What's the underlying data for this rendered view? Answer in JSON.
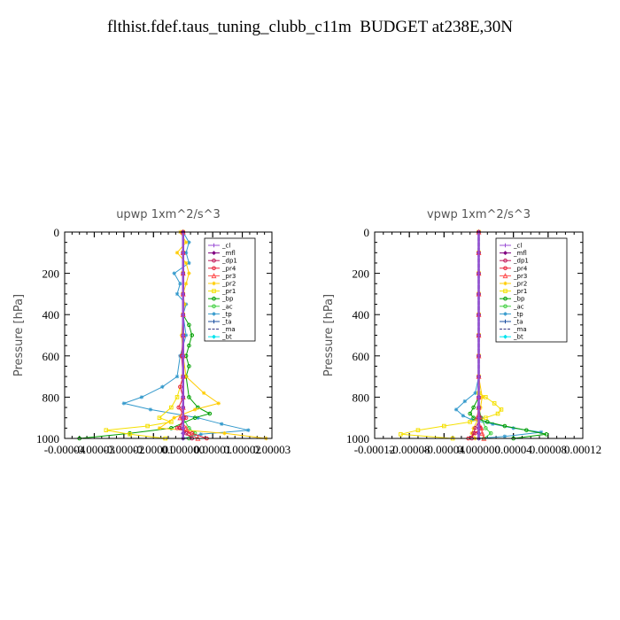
{
  "page": {
    "title": "flthist.fdef.taus_tuning_clubb_c11m  BUDGET at238E,30N"
  },
  "chart_data": [
    {
      "type": "line",
      "title": "upwp   1xm^2/s^3",
      "ylabel": "Pressure [hPa]",
      "xlabel": "",
      "xlim": [
        -4e-05,
        3e-05
      ],
      "ylim": [
        1000,
        0
      ],
      "xticks": [
        -4e-05,
        -3e-05,
        -2e-05,
        -1e-05,
        0,
        1e-05,
        2e-05,
        3e-05
      ],
      "xtick_labels": [
        "-0.00004",
        "-0.00003",
        "-0.00002",
        "-0.00001",
        "0.000000",
        "0.00001",
        "0.00002",
        "0.00003"
      ],
      "yticks": [
        0,
        200,
        400,
        600,
        800,
        1000
      ],
      "ytick_labels": [
        "0",
        "200",
        "400",
        "600",
        "800",
        "1000"
      ],
      "legend": "top-right",
      "series": [
        {
          "name": "_cl",
          "color": "#9b4fd6",
          "marker": "plus",
          "p": [
            0,
            100,
            200,
            300,
            400,
            500,
            600,
            700,
            800,
            850,
            900,
            950,
            975,
            1000
          ],
          "x": [
            0,
            0,
            0,
            0,
            0,
            0,
            0,
            0,
            0,
            0,
            0,
            0,
            0,
            0
          ]
        },
        {
          "name": "_mfl",
          "color": "#800080",
          "marker": "diamond",
          "p": [
            0,
            100,
            200,
            300,
            400,
            500,
            600,
            700,
            800,
            850,
            900,
            950,
            975,
            1000
          ],
          "x": [
            0,
            0,
            0,
            0,
            0,
            0,
            0,
            0,
            0,
            0,
            0,
            0,
            0,
            0
          ]
        },
        {
          "name": "_dp1",
          "color": "#c2185b",
          "marker": "circle",
          "p": [
            0,
            100,
            200,
            300,
            400,
            500,
            600,
            700,
            800,
            850,
            900,
            950,
            975,
            1000
          ],
          "x": [
            0,
            0,
            0,
            0,
            0,
            0,
            0,
            0,
            0,
            0,
            0,
            -1e-06,
            1e-06,
            3e-06
          ]
        },
        {
          "name": "_pr4",
          "color": "#e8213a",
          "marker": "circle",
          "p": [
            0,
            100,
            200,
            300,
            400,
            500,
            600,
            700,
            750,
            800,
            850,
            900,
            950,
            975,
            1000
          ],
          "x": [
            0,
            0,
            0,
            0,
            0,
            0,
            -5e-07,
            0,
            -1e-06,
            0,
            -1.5e-06,
            1e-06,
            -2e-06,
            3e-06,
            8e-06
          ]
        },
        {
          "name": "_pr3",
          "color": "#ff5050",
          "marker": "triangle",
          "p": [
            0,
            100,
            200,
            300,
            400,
            500,
            600,
            700,
            800,
            850,
            900,
            950,
            975,
            1000
          ],
          "x": [
            0,
            0,
            0,
            0,
            0,
            0,
            0,
            0,
            0,
            0,
            -1e-06,
            1e-06,
            2e-06,
            5e-06
          ]
        },
        {
          "name": "_pr2",
          "color": "#ffcc00",
          "marker": "star",
          "p": [
            0,
            50,
            100,
            150,
            200,
            250,
            300,
            350,
            400,
            500,
            600,
            700,
            780,
            830,
            860,
            900,
            950,
            975,
            1000
          ],
          "x": [
            -1e-06,
            1e-06,
            -2e-06,
            1e-06,
            2e-06,
            1e-06,
            0,
            5e-07,
            0,
            -5e-07,
            0,
            1e-06,
            7e-06,
            1.2e-05,
            4e-06,
            -3e-06,
            -8e-06,
            1.4e-05,
            2.8e-05
          ]
        },
        {
          "name": "_pr1",
          "color": "#f5e000",
          "marker": "square",
          "p": [
            0,
            100,
            200,
            300,
            400,
            500,
            600,
            700,
            800,
            850,
            900,
            920,
            940,
            960,
            980,
            1000
          ],
          "x": [
            0,
            0,
            0,
            0,
            0,
            0,
            0,
            0,
            -2e-06,
            -4e-06,
            -8e-06,
            -4e-06,
            -1.2e-05,
            -2.6e-05,
            -1.8e-05,
            -6e-06
          ]
        },
        {
          "name": "_bp",
          "color": "#00a000",
          "marker": "circle",
          "p": [
            0,
            100,
            200,
            300,
            400,
            450,
            500,
            550,
            600,
            650,
            700,
            800,
            850,
            880,
            900,
            950,
            975,
            1000
          ],
          "x": [
            0,
            0,
            0,
            0,
            0,
            2e-06,
            3e-06,
            2e-06,
            1e-06,
            2e-06,
            1e-06,
            2e-06,
            5e-06,
            9e-06,
            4e-06,
            -4e-06,
            -1.8e-05,
            -3.5e-05
          ]
        },
        {
          "name": "_ac",
          "color": "#40d040",
          "marker": "circle",
          "p": [
            0,
            100,
            200,
            300,
            400,
            500,
            600,
            700,
            800,
            850,
            900,
            950,
            975,
            1000
          ],
          "x": [
            0,
            0,
            0,
            0,
            0,
            0,
            0,
            0,
            0,
            0,
            0,
            2e-06,
            4e-06,
            2e-06
          ]
        },
        {
          "name": "_tp",
          "color": "#3399cc",
          "marker": "star",
          "p": [
            0,
            50,
            100,
            150,
            200,
            250,
            300,
            350,
            400,
            500,
            600,
            700,
            750,
            800,
            830,
            860,
            900,
            930,
            960,
            980,
            1000
          ],
          "x": [
            0,
            2e-06,
            1e-06,
            2e-06,
            -3e-06,
            -1e-06,
            -2e-06,
            1e-06,
            0,
            1e-06,
            -1e-06,
            -2e-06,
            -7e-06,
            -1.4e-05,
            -2e-05,
            -1.1e-05,
            5e-06,
            1.3e-05,
            2.2e-05,
            6e-06,
            0
          ]
        },
        {
          "name": "_ta",
          "color": "#1c4fa0",
          "marker": "plus",
          "p": [
            0,
            100,
            200,
            300,
            400,
            500,
            600,
            700,
            800,
            850,
            900,
            950,
            975,
            1000
          ],
          "x": [
            0,
            0,
            0,
            0,
            0,
            0,
            0,
            0,
            0,
            0,
            0,
            0,
            0,
            0
          ]
        },
        {
          "name": "_ma",
          "color": "#2b2b7a",
          "marker": "none",
          "p": [
            0,
            100,
            200,
            300,
            400,
            500,
            600,
            700,
            800,
            850,
            900,
            950,
            975,
            1000
          ],
          "x": [
            0,
            0,
            0,
            0,
            0,
            0,
            0,
            0,
            0,
            0,
            0,
            0,
            0,
            0
          ]
        },
        {
          "name": "_bt",
          "color": "#00e5ee",
          "marker": "diamond",
          "p": [
            0,
            100,
            200,
            300,
            400,
            500,
            600,
            700,
            800,
            850,
            900,
            950,
            975,
            1000
          ],
          "x": [
            0,
            0,
            0,
            0,
            0,
            0,
            0,
            0,
            0,
            0,
            0,
            0,
            0,
            0
          ]
        }
      ]
    },
    {
      "type": "line",
      "title": "vpwp   1xm^2/s^3",
      "ylabel": "Pressure [hPa]",
      "xlabel": "",
      "xlim": [
        -0.00012,
        0.00012
      ],
      "ylim": [
        1000,
        0
      ],
      "xticks": [
        -0.00012,
        -8e-05,
        -4e-05,
        0,
        4e-05,
        8e-05,
        0.00012
      ],
      "xtick_labels": [
        "-0.00012",
        "-0.00008",
        "-0.00004",
        "0.000000",
        "0.00004",
        "0.00008",
        "0.00012"
      ],
      "yticks": [
        0,
        200,
        400,
        600,
        800,
        1000
      ],
      "ytick_labels": [
        "0",
        "200",
        "400",
        "600",
        "800",
        "1000"
      ],
      "legend": "top-right",
      "series": [
        {
          "name": "_cl",
          "color": "#9b4fd6",
          "marker": "plus",
          "p": [
            0,
            100,
            200,
            300,
            400,
            500,
            600,
            700,
            800,
            850,
            900,
            950,
            975,
            1000
          ],
          "x": [
            0,
            0,
            0,
            0,
            0,
            0,
            0,
            0,
            0,
            0,
            0,
            0,
            0,
            0
          ]
        },
        {
          "name": "_mfl",
          "color": "#800080",
          "marker": "diamond",
          "p": [
            0,
            100,
            200,
            300,
            400,
            500,
            600,
            700,
            800,
            850,
            900,
            950,
            975,
            1000
          ],
          "x": [
            0,
            0,
            0,
            0,
            0,
            0,
            0,
            0,
            0,
            0,
            0,
            0,
            0,
            0
          ]
        },
        {
          "name": "_dp1",
          "color": "#c2185b",
          "marker": "circle",
          "p": [
            0,
            100,
            200,
            300,
            400,
            500,
            600,
            700,
            800,
            850,
            900,
            950,
            975,
            1000
          ],
          "x": [
            0,
            0,
            0,
            0,
            0,
            0,
            0,
            0,
            0,
            0,
            2e-06,
            -4e-06,
            -6e-06,
            -8e-06
          ]
        },
        {
          "name": "_pr4",
          "color": "#e8213a",
          "marker": "circle",
          "p": [
            0,
            100,
            200,
            300,
            400,
            500,
            600,
            700,
            800,
            850,
            900,
            950,
            975,
            1000
          ],
          "x": [
            0,
            0,
            0,
            0,
            0,
            0,
            0,
            0,
            0,
            0,
            0,
            2e-06,
            -4e-06,
            -1.2e-05
          ]
        },
        {
          "name": "_pr3",
          "color": "#ff5050",
          "marker": "triangle",
          "p": [
            0,
            100,
            200,
            300,
            400,
            500,
            600,
            700,
            800,
            850,
            900,
            950,
            975,
            1000
          ],
          "x": [
            0,
            0,
            0,
            0,
            0,
            0,
            0,
            0,
            0,
            0,
            -2e-06,
            3e-06,
            4e-06,
            6e-06
          ]
        },
        {
          "name": "_pr2",
          "color": "#ffcc00",
          "marker": "star",
          "p": [
            0,
            100,
            200,
            300,
            400,
            500,
            600,
            700,
            800,
            850,
            900,
            950,
            975,
            1000
          ],
          "x": [
            0,
            0,
            0,
            0,
            0,
            0,
            0,
            0,
            4e-06,
            2e-06,
            0,
            -6e-06,
            -8e-06,
            -4e-06
          ]
        },
        {
          "name": "_pr1",
          "color": "#f5e000",
          "marker": "square",
          "p": [
            0,
            100,
            200,
            300,
            400,
            500,
            600,
            700,
            780,
            800,
            830,
            860,
            880,
            900,
            920,
            940,
            960,
            980,
            1000
          ],
          "x": [
            0,
            0,
            0,
            0,
            0,
            0,
            0,
            0,
            0,
            8e-06,
            1.8e-05,
            2.6e-05,
            2.2e-05,
            8e-06,
            -1e-05,
            -4e-05,
            -7e-05,
            -9e-05,
            -3e-05
          ]
        },
        {
          "name": "_bp",
          "color": "#00a000",
          "marker": "circle",
          "p": [
            0,
            100,
            200,
            300,
            400,
            500,
            600,
            700,
            800,
            850,
            880,
            900,
            920,
            940,
            960,
            980,
            1000
          ],
          "x": [
            0,
            0,
            0,
            0,
            0,
            0,
            0,
            0,
            0,
            -6e-06,
            -1e-05,
            -6e-06,
            1e-05,
            3e-05,
            5.5e-05,
            7.8e-05,
            4e-05
          ]
        },
        {
          "name": "_ac",
          "color": "#40d040",
          "marker": "circle",
          "p": [
            0,
            100,
            200,
            300,
            400,
            500,
            600,
            700,
            800,
            850,
            900,
            950,
            975,
            1000
          ],
          "x": [
            0,
            0,
            0,
            0,
            0,
            0,
            0,
            0,
            0,
            0,
            3e-06,
            8e-06,
            1.4e-05,
            6e-06
          ]
        },
        {
          "name": "_tp",
          "color": "#3399cc",
          "marker": "star",
          "p": [
            0,
            100,
            200,
            300,
            400,
            500,
            600,
            700,
            780,
            820,
            860,
            890,
            910,
            930,
            950,
            970,
            990,
            1000
          ],
          "x": [
            0,
            0,
            0,
            0,
            0,
            0,
            0,
            0,
            -4e-06,
            -1.6e-05,
            -2.6e-05,
            -1.8e-05,
            -8e-06,
            1.6e-05,
            4e-05,
            7.2e-05,
            3e-05,
            0
          ]
        },
        {
          "name": "_ta",
          "color": "#1c4fa0",
          "marker": "plus",
          "p": [
            0,
            100,
            200,
            300,
            400,
            500,
            600,
            700,
            800,
            850,
            900,
            950,
            975,
            1000
          ],
          "x": [
            0,
            0,
            0,
            0,
            0,
            0,
            0,
            0,
            0,
            0,
            0,
            0,
            0,
            0
          ]
        },
        {
          "name": "_ma",
          "color": "#2b2b7a",
          "marker": "none",
          "p": [
            0,
            100,
            200,
            300,
            400,
            500,
            600,
            700,
            800,
            850,
            900,
            950,
            975,
            1000
          ],
          "x": [
            0,
            0,
            0,
            0,
            0,
            0,
            0,
            0,
            0,
            0,
            0,
            0,
            0,
            0
          ]
        },
        {
          "name": "_bt",
          "color": "#00e5ee",
          "marker": "diamond",
          "p": [
            0,
            100,
            200,
            300,
            400,
            500,
            600,
            700,
            800,
            850,
            900,
            950,
            975,
            1000
          ],
          "x": [
            0,
            0,
            0,
            0,
            0,
            0,
            0,
            0,
            0,
            0,
            0,
            0,
            0,
            0
          ]
        }
      ]
    }
  ]
}
